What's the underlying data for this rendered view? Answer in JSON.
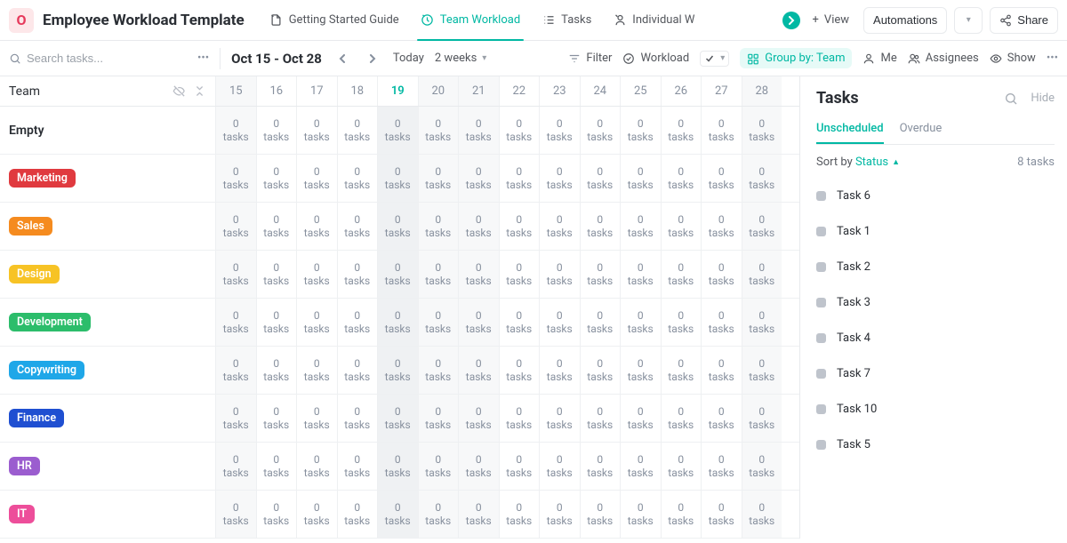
{
  "header": {
    "app_icon_letter": "O",
    "title": "Employee Workload Template",
    "tabs": [
      {
        "label": "Getting Started Guide",
        "icon": "document-icon"
      },
      {
        "label": "Team Workload",
        "icon": "workload-icon",
        "active": true
      },
      {
        "label": "Tasks",
        "icon": "list-icon"
      },
      {
        "label": "Individual W",
        "icon": "person-workload-icon"
      }
    ],
    "add_view": "View",
    "automations": "Automations",
    "share": "Share"
  },
  "toolbar": {
    "search_placeholder": "Search tasks...",
    "date_range": "Oct 15 - Oct 28",
    "today": "Today",
    "span": "2 weeks",
    "filter": "Filter",
    "workload": "Workload",
    "group_by": "Group by: Team",
    "me": "Me",
    "assignees": "Assignees",
    "show": "Show"
  },
  "grid": {
    "team_label": "Team",
    "days": [
      "15",
      "16",
      "17",
      "18",
      "19",
      "20",
      "21",
      "22",
      "23",
      "24",
      "25",
      "26",
      "27",
      "28"
    ],
    "shaded_indices": [
      0,
      5,
      6,
      13
    ],
    "today_index": 4,
    "cell_count": "0",
    "cell_unit": "tasks",
    "rows": [
      {
        "name": "Empty",
        "is_empty": true
      },
      {
        "name": "Marketing",
        "color": "#e03a3f"
      },
      {
        "name": "Sales",
        "color": "#f58b1f"
      },
      {
        "name": "Design",
        "color": "#f7c325"
      },
      {
        "name": "Development",
        "color": "#2cbd6b"
      },
      {
        "name": "Copywriting",
        "color": "#1fa7e8"
      },
      {
        "name": "Finance",
        "color": "#1f4fd1"
      },
      {
        "name": "HR",
        "color": "#9b5dcf"
      },
      {
        "name": "IT",
        "color": "#ed4e9a"
      }
    ]
  },
  "side": {
    "title": "Tasks",
    "hide": "Hide",
    "tabs": {
      "unscheduled": "Unscheduled",
      "overdue": "Overdue"
    },
    "sort_by": "Sort by",
    "sort_field": "Status",
    "count": "8 tasks",
    "tasks": [
      "Task 6",
      "Task 1",
      "Task 2",
      "Task 3",
      "Task 4",
      "Task 7",
      "Task 10",
      "Task 5"
    ]
  }
}
